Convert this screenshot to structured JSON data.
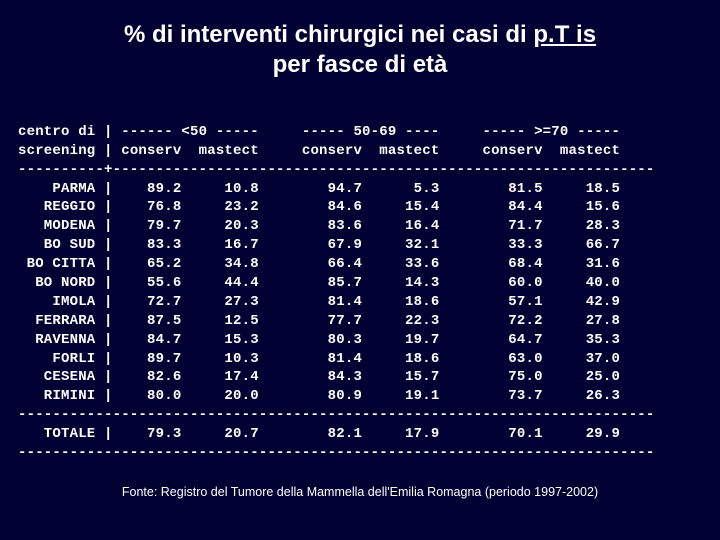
{
  "colors": {
    "background": "#000033",
    "text": "#ffffff"
  },
  "title": {
    "line1_prefix": "% di interventi chirurgici nei casi di ",
    "line1_underlined": "p.T is",
    "line2": "per fasce di età",
    "fontsize": 24,
    "font_family": "Verdana"
  },
  "table": {
    "type": "table",
    "font_family": "Courier New",
    "fontsize": 14,
    "header_lines": {
      "h1": "centro di | ------ <50 -----     ----- 50-69 ----     ----- >=70 -----",
      "h2": "screening | conserv  mastect     conserv  mastect     conserv  mastect",
      "sep": "----------+---------------------------------------------------------------"
    },
    "columns": [
      "centro",
      "conserv_lt50",
      "mastect_lt50",
      "conserv_50_69",
      "mastect_50_69",
      "conserv_ge70",
      "mastect_ge70"
    ],
    "rows": [
      [
        "PARMA",
        "89.2",
        "10.8",
        "94.7",
        "5.3",
        "81.5",
        "18.5"
      ],
      [
        "REGGIO",
        "76.8",
        "23.2",
        "84.6",
        "15.4",
        "84.4",
        "15.6"
      ],
      [
        "MODENA",
        "79.7",
        "20.3",
        "83.6",
        "16.4",
        "71.7",
        "28.3"
      ],
      [
        "BO SUD",
        "83.3",
        "16.7",
        "67.9",
        "32.1",
        "33.3",
        "66.7"
      ],
      [
        "BO CITTA",
        "65.2",
        "34.8",
        "66.4",
        "33.6",
        "68.4",
        "31.6"
      ],
      [
        "BO NORD",
        "55.6",
        "44.4",
        "85.7",
        "14.3",
        "60.0",
        "40.0"
      ],
      [
        "IMOLA",
        "72.7",
        "27.3",
        "81.4",
        "18.6",
        "57.1",
        "42.9"
      ],
      [
        "FERRARA",
        "87.5",
        "12.5",
        "77.7",
        "22.3",
        "72.2",
        "27.8"
      ],
      [
        "RAVENNA",
        "84.7",
        "15.3",
        "80.3",
        "19.7",
        "64.7",
        "35.3"
      ],
      [
        "FORLI",
        "89.7",
        "10.3",
        "81.4",
        "18.6",
        "63.0",
        "37.0"
      ],
      [
        "CESENA",
        "82.6",
        "17.4",
        "84.3",
        "15.7",
        "75.0",
        "25.0"
      ],
      [
        "RIMINI",
        "80.0",
        "20.0",
        "80.9",
        "19.1",
        "73.7",
        "26.3"
      ]
    ],
    "hr": "--------------------------------------------------------------------------",
    "total_label": "TOTALE",
    "total_row": [
      "79.3",
      "20.7",
      "82.1",
      "17.9",
      "70.1",
      "29.9"
    ]
  },
  "source": "Fonte: Registro del Tumore della Mammella dell'Emilia Romagna (periodo 1997-2002)"
}
